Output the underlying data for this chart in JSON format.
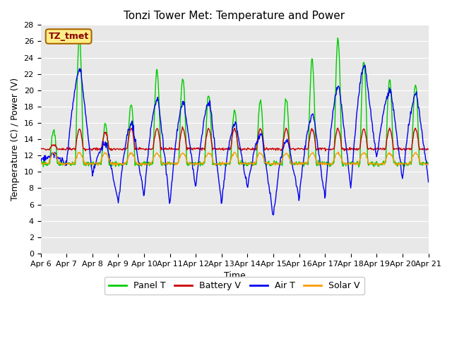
{
  "title": "Tonzi Tower Met: Temperature and Power",
  "xlabel": "Time",
  "ylabel": "Temperature (C) / Power (V)",
  "ylim": [
    0,
    28
  ],
  "colors": {
    "panel_t": "#00CC00",
    "battery_v": "#CC0000",
    "air_t": "#0000EE",
    "solar_v": "#FF9900"
  },
  "legend_labels": [
    "Panel T",
    "Battery V",
    "Air T",
    "Solar V"
  ],
  "annotation_text": "TZ_tmet",
  "annotation_box_color": "#FFEE88",
  "annotation_box_edge": "#AA6600",
  "background_color": "#E8E8E8",
  "fig_background": "#FFFFFF",
  "grid_color": "#FFFFFF",
  "title_fontsize": 11,
  "axis_fontsize": 9,
  "tick_fontsize": 8,
  "legend_fontsize": 9,
  "x_tick_labels": [
    "Apr 6",
    "Apr 7",
    "Apr 8",
    "Apr 9",
    "Apr 10",
    "Apr 11",
    "Apr 12",
    "Apr 13",
    "Apr 14",
    "Apr 15",
    "Apr 16",
    "Apr 17",
    "Apr 18",
    "Apr 19",
    "Apr 20",
    "Apr 21"
  ],
  "panel_t_peaks": [
    15,
    26.5,
    15.8,
    18.5,
    22.5,
    21.5,
    19.3,
    17.5,
    18.8,
    18.9,
    23.8,
    26.3,
    23.5,
    21.3,
    20.8
  ],
  "panel_t_base": 11.0,
  "air_t_night": [
    11.5,
    11.0,
    9.8,
    6.3,
    7.0,
    5.9,
    8.0,
    6.0,
    8.0,
    4.5,
    6.8,
    6.8,
    8.0,
    11.5,
    9.0,
    6.8
  ],
  "air_t_day": [
    12.0,
    22.5,
    13.5,
    16.0,
    19.0,
    18.5,
    18.5,
    16.0,
    14.5,
    14.0,
    17.0,
    20.5,
    23.0,
    20.0,
    19.5,
    19.5
  ],
  "battery_v_base": 12.8,
  "battery_v_peaks": [
    0.5,
    2.5,
    2.0,
    2.5,
    2.5,
    2.5,
    2.5,
    2.5,
    2.5,
    2.5,
    2.5,
    2.5,
    2.5,
    2.5,
    2.5
  ],
  "solar_v_base": 11.0,
  "solar_v_peak": 1.3
}
